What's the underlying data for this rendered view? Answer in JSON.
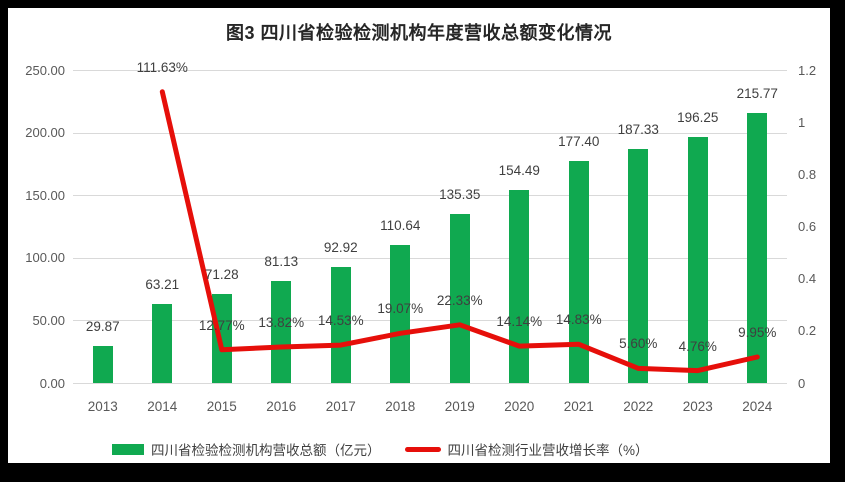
{
  "title": "图3  四川省检验检测机构年度营收总额变化情况",
  "colors": {
    "frame_bg": "#000000",
    "canvas_bg": "#ffffff",
    "bar": "#10a950",
    "line": "#e60f0a",
    "grid": "#d9d9d9",
    "axis_text": "#595959",
    "label_text": "#3f3f3f",
    "title_text": "#262626"
  },
  "chart_data": {
    "type": "bar+line",
    "title": "图3  四川省检验检测机构年度营收总额变化情况",
    "categories": [
      "2013",
      "2014",
      "2015",
      "2016",
      "2017",
      "2018",
      "2019",
      "2020",
      "2021",
      "2022",
      "2023",
      "2024"
    ],
    "series": [
      {
        "name": "四川省检验检测机构营收总额（亿元）",
        "type": "bar",
        "axis": "left",
        "color": "#10a950",
        "values": [
          29.87,
          63.21,
          71.28,
          81.13,
          92.92,
          110.64,
          135.35,
          154.49,
          177.4,
          187.33,
          196.25,
          215.77
        ],
        "labels": [
          "29.87",
          "63.21",
          "71.28",
          "81.13",
          "92.92",
          "110.64",
          "135.35",
          "154.49",
          "177.40",
          "187.33",
          "196.25",
          "215.77"
        ]
      },
      {
        "name": "四川省检测行业营收增长率（%）",
        "type": "line",
        "axis": "right",
        "color": "#e60f0a",
        "values": [
          null,
          1.1163,
          0.1277,
          0.1382,
          0.1453,
          0.1907,
          0.2233,
          0.1414,
          0.1483,
          0.056,
          0.0476,
          0.0995
        ],
        "labels": [
          "",
          "111.63%",
          "12.77%",
          "13.82%",
          "14.53%",
          "19.07%",
          "22.33%",
          "14.14%",
          "14.83%",
          "5.60%",
          "4.76%",
          "9.95%"
        ]
      }
    ],
    "left_axis": {
      "min": 0,
      "max": 250,
      "ticks": [
        "0.00",
        "50.00",
        "100.00",
        "150.00",
        "200.00",
        "250.00"
      ]
    },
    "right_axis": {
      "min": 0,
      "max": 1.2,
      "ticks": [
        "0",
        "0.2",
        "0.4",
        "0.6",
        "0.8",
        "1",
        "1.2"
      ]
    },
    "grid": true,
    "legend_position": "bottom"
  }
}
